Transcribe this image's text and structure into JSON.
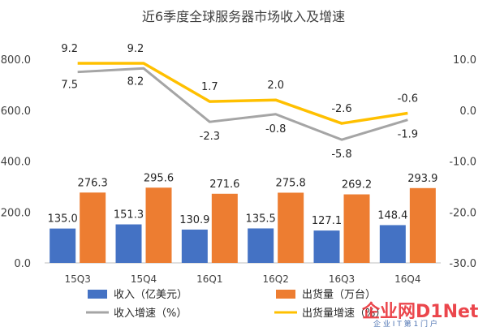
{
  "chart_data": {
    "type": "bar",
    "title": "近6季度全球服务器市场收入及增速",
    "categories": [
      "15Q3",
      "15Q4",
      "16Q1",
      "16Q2",
      "16Q3",
      "16Q4"
    ],
    "ylim_left": [
      0,
      800
    ],
    "ylim_right": [
      -30,
      10
    ],
    "left_ticks": [
      "0.0",
      "200.0",
      "400.0",
      "600.0",
      "800.0"
    ],
    "right_ticks": [
      "-30.0",
      "-20.0",
      "-10.0",
      "0.0",
      "10.0"
    ],
    "grid": false,
    "legend_position": "bottom",
    "bar_series": [
      {
        "name": "收入（亿美元）",
        "color": "#4472c4",
        "values": [
          135.0,
          151.3,
          130.9,
          135.5,
          127.1,
          148.4
        ],
        "labels": [
          "135.0",
          "151.3",
          "130.9",
          "135.5",
          "127.1",
          "148.4"
        ]
      },
      {
        "name": "出货量（万台）",
        "color": "#ed7d31",
        "values": [
          276.3,
          295.6,
          271.6,
          275.8,
          269.2,
          293.9
        ],
        "labels": [
          "276.3",
          "295.6",
          "271.6",
          "275.8",
          "269.2",
          "293.9"
        ]
      }
    ],
    "line_series": [
      {
        "name": "收入增速（%）",
        "color": "#a5a5a5",
        "values": [
          7.5,
          8.2,
          -2.3,
          -0.8,
          -5.8,
          -1.9
        ],
        "labels": [
          "7.5",
          "8.2",
          "-2.3",
          "-0.8",
          "-5.8",
          "-1.9"
        ]
      },
      {
        "name": "出货量增速（%）",
        "color": "#ffc000",
        "values": [
          9.2,
          9.2,
          1.7,
          2.0,
          -2.6,
          -0.6
        ],
        "labels": [
          "9.2",
          "9.2",
          "1.7",
          "2.0",
          "-2.6",
          "-0.6"
        ]
      }
    ]
  },
  "watermark": {
    "brand": "企业网D1Net",
    "tagline": "企 业 I T 第 1 门 户",
    "colors": {
      "red": "#e8262d",
      "blue": "#1f4e9e"
    }
  }
}
